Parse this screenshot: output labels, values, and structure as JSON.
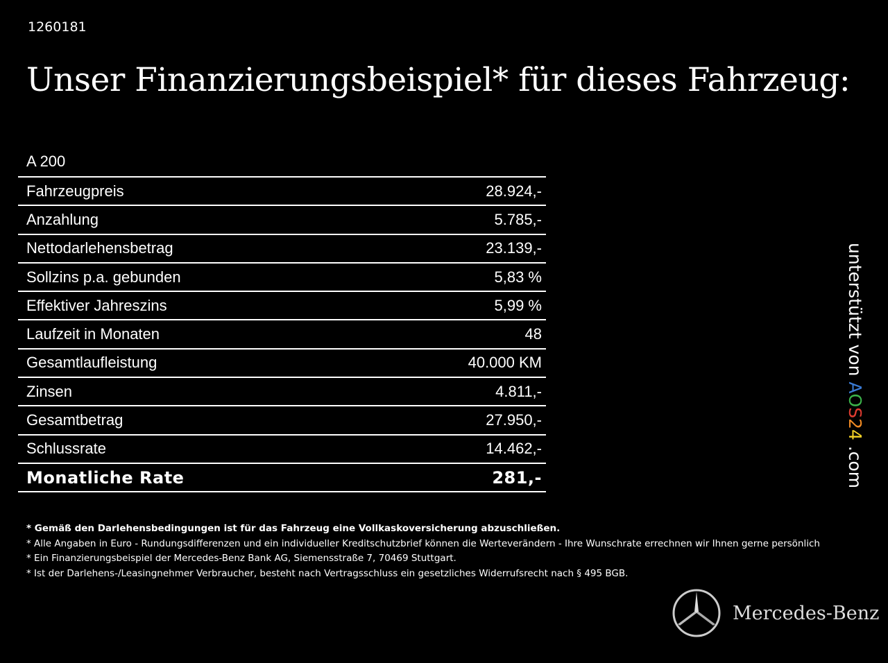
{
  "code": "1260181",
  "title": "Unser Finanzierungsbeispiel* für dieses Fahrzeug:",
  "model": "A 200",
  "rows": [
    {
      "label": "Fahrzeugpreis",
      "value": "28.924,-"
    },
    {
      "label": "Anzahlung",
      "value": "5.785,-"
    },
    {
      "label": "Nettodarlehensbetrag",
      "value": "23.139,-"
    },
    {
      "label": "Sollzins p.a. gebunden",
      "value": "5,83 %"
    },
    {
      "label": "Effektiver Jahreszins",
      "value": "5,99 %"
    },
    {
      "label": "Laufzeit in Monaten",
      "value": "48"
    },
    {
      "label": "Gesamtlaufleistung",
      "value": "40.000 KM"
    },
    {
      "label": "Zinsen",
      "value": "4.811,-"
    },
    {
      "label": "Gesamtbetrag",
      "value": "27.950,-"
    },
    {
      "label": "Schlussrate",
      "value": "14.462,-"
    },
    {
      "label": "Monatliche Rate",
      "value": "281,-"
    }
  ],
  "notes": [
    "* Gemäß den Darlehensbedingungen ist für das Fahrzeug eine Vollkaskoversicherung abzuschließen.",
    "* Alle Angaben in Euro - Rundungsdifferenzen und ein individueller Kreditschutzbrief können die Werteverändern - Ihre Wunschrate errechnen wir Ihnen gerne persönlich",
    "* Ein Finanzierungsbeispiel der Mercedes-Benz Bank AG, Siemensstraße 7, 70469 Stuttgart.",
    "* Ist der Darlehens-/Leasingnehmer Verbraucher, besteht nach Vertragsschluss ein gesetzliches Widerrufsrecht nach § 495 BGB."
  ],
  "side": {
    "prefix": "unterstützt von ",
    "letters": [
      {
        "c": "A",
        "color": "#3a7bd5"
      },
      {
        "c": "O",
        "color": "#3cb44b"
      },
      {
        "c": "S",
        "color": "#e03c31"
      },
      {
        "c": "2",
        "color": "#f08a24"
      },
      {
        "c": "4",
        "color": "#f5d327"
      }
    ],
    "suffix": " .com"
  },
  "brand": {
    "name": "Mercedes-Benz",
    "logo": "mercedes-star-logo"
  }
}
